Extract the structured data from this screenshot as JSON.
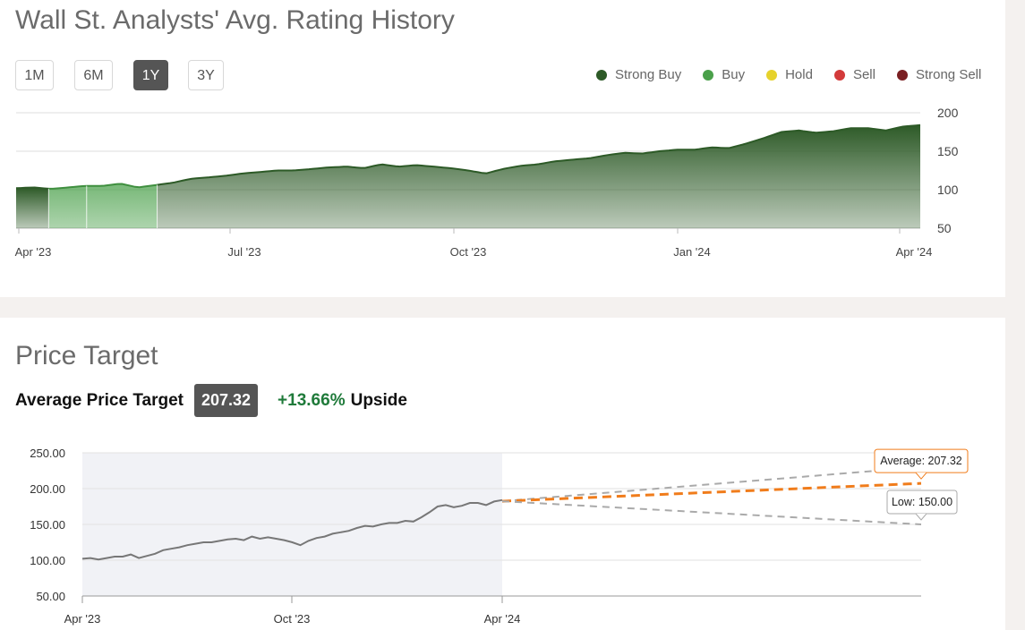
{
  "rating_section": {
    "title": "Wall St. Analysts' Avg. Rating History",
    "ranges": [
      "1M",
      "6M",
      "1Y",
      "3Y"
    ],
    "active_range": "1Y",
    "legend": [
      {
        "label": "Strong Buy",
        "color": "#2d5a27"
      },
      {
        "label": "Buy",
        "color": "#4aa04a"
      },
      {
        "label": "Hold",
        "color": "#e6d22c"
      },
      {
        "label": "Sell",
        "color": "#d33a3a"
      },
      {
        "label": "Strong Sell",
        "color": "#7a1f22"
      }
    ]
  },
  "target_section": {
    "title": "Price Target",
    "avg_label": "Average Price Target",
    "avg_value": "207.32",
    "upside_pct": "+13.66%",
    "upside_word": "Upside"
  },
  "chart_data": [
    {
      "type": "area",
      "title": "Wall St. Analysts' Avg. Rating History",
      "x_ticks": [
        "Apr '23",
        "Jul '23",
        "Oct '23",
        "Jan '24",
        "Apr '24"
      ],
      "y_ticks": [
        200,
        150,
        100,
        50
      ],
      "ylim": [
        50,
        200
      ],
      "series": [
        {
          "name": "Price",
          "color": "#2d5a27",
          "values": [
            102,
            103,
            101,
            103,
            105,
            105,
            108,
            103,
            106,
            109,
            114,
            116,
            118,
            121,
            123,
            125,
            125,
            127,
            129,
            130,
            128,
            133,
            130,
            132,
            130,
            128,
            125,
            121,
            127,
            131,
            133,
            137,
            139,
            141,
            145,
            148,
            147,
            150,
            152,
            152,
            155,
            154,
            160,
            167,
            175,
            177,
            174,
            176,
            180,
            180,
            177,
            182,
            184
          ]
        }
      ],
      "rating_bands": [
        {
          "rating": "Strong Buy",
          "from": 0,
          "to": 0.036,
          "color": "#2d5a27"
        },
        {
          "rating": "Buy",
          "from": 0.036,
          "to": 0.078,
          "color": "#4aa04a"
        },
        {
          "rating": "Buy",
          "from": 0.078,
          "to": 0.156,
          "color": "#4aa04a"
        },
        {
          "rating": "Strong Buy",
          "from": 0.156,
          "to": 1,
          "color": "#2d5a27"
        }
      ]
    },
    {
      "type": "line",
      "title": "Price Target",
      "x_ticks": [
        "Apr '23",
        "Oct '23",
        "Apr '24"
      ],
      "y_ticks": [
        "250.00",
        "200.00",
        "150.00",
        "100.00",
        "50.00"
      ],
      "ylim": [
        50,
        250
      ],
      "series": [
        {
          "name": "Price",
          "color": "#777777",
          "values": [
            102,
            103,
            101,
            103,
            105,
            105,
            108,
            103,
            106,
            109,
            114,
            116,
            118,
            121,
            123,
            125,
            125,
            127,
            129,
            130,
            128,
            133,
            130,
            132,
            130,
            128,
            125,
            121,
            127,
            131,
            133,
            137,
            139,
            141,
            145,
            148,
            147,
            150,
            152,
            152,
            155,
            154,
            160,
            167,
            175,
            177,
            174,
            176,
            180,
            180,
            177,
            182,
            184
          ]
        }
      ],
      "projections": [
        {
          "name": "High",
          "label": "",
          "start": 182.4,
          "end": 230,
          "color": "#aaaaaa"
        },
        {
          "name": "Average",
          "label": "Average: 207.32",
          "start": 182.4,
          "end": 207.32,
          "color": "#f07c1b"
        },
        {
          "name": "Low",
          "label": "Low: 150.00",
          "start": 182.4,
          "end": 150,
          "color": "#aaaaaa"
        }
      ]
    }
  ]
}
